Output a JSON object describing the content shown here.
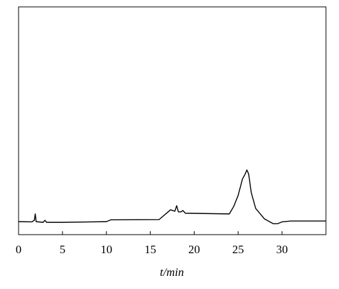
{
  "chart_data": {
    "type": "line",
    "xlabel": "t/min",
    "x": [
      0,
      1.5,
      1.8,
      1.9,
      2.0,
      2.8,
      3.0,
      3.2,
      5,
      10,
      10.5,
      11,
      16,
      17.3,
      17.8,
      18.0,
      18.2,
      18.5,
      18.7,
      19,
      24,
      24.5,
      25,
      25.5,
      25.8,
      26.0,
      26.2,
      26.5,
      27,
      28,
      29,
      29.5,
      30,
      31,
      35
    ],
    "series": [
      {
        "color": "#000000",
        "values": [
          5.7,
          5.6,
          6.3,
          9.1,
          5.7,
          5.4,
          6.3,
          5.4,
          5.4,
          5.7,
          6.5,
          6.5,
          6.6,
          10.9,
          10.3,
          12.7,
          10.0,
          10.0,
          10.6,
          9.4,
          9.1,
          12.4,
          17.2,
          24.5,
          26.6,
          28.4,
          26.6,
          18.4,
          11.5,
          6.9,
          4.8,
          4.8,
          5.6,
          6.0,
          6.0
        ]
      }
    ],
    "xlim": [
      0,
      35
    ],
    "ylim": [
      0,
      100
    ],
    "xticks": [
      0,
      5,
      10,
      15,
      20,
      25,
      30
    ]
  }
}
